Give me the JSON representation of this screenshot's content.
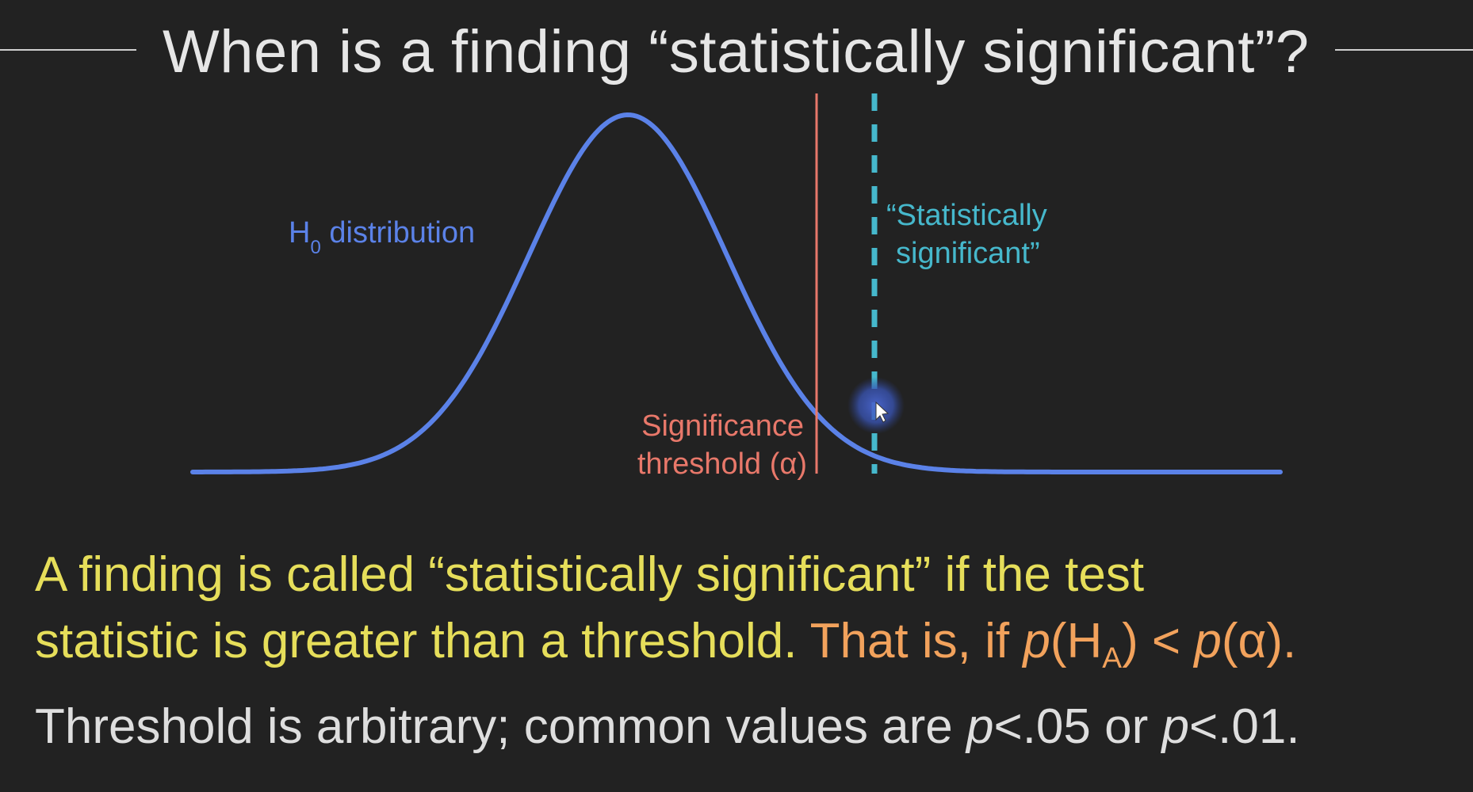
{
  "title": "When is a finding “statistically significant”?",
  "diagram": {
    "h0_label_main": "H",
    "h0_label_sub": "0",
    "h0_label_rest": " distribution",
    "threshold_label_line1": "Significance",
    "threshold_label_line2": "threshold (α)",
    "significant_label_line1": "“Statistically",
    "significant_label_line2": "significant”",
    "colors": {
      "curve": "#5b82e8",
      "threshold": "#e8786a",
      "significant": "#46b8cc",
      "cursor_glow": "#3a56b8"
    }
  },
  "text": {
    "line1": "A finding is called “statistically significant” if the test",
    "line2_plain": "statistic is greater than a threshold. ",
    "line2_orange_start": "That is, if ",
    "line2_p1": "p",
    "line2_paren_open": "(H",
    "line2_sub": "A",
    "line2_paren_close": ") < ",
    "line2_p2": "p",
    "line2_end": "(α).",
    "line3_start": "Threshold is arbitrary; common values are ",
    "line3_p1": "p",
    "line3_mid": "<.05 or ",
    "line3_p2": "p",
    "line3_end": "<.01."
  }
}
